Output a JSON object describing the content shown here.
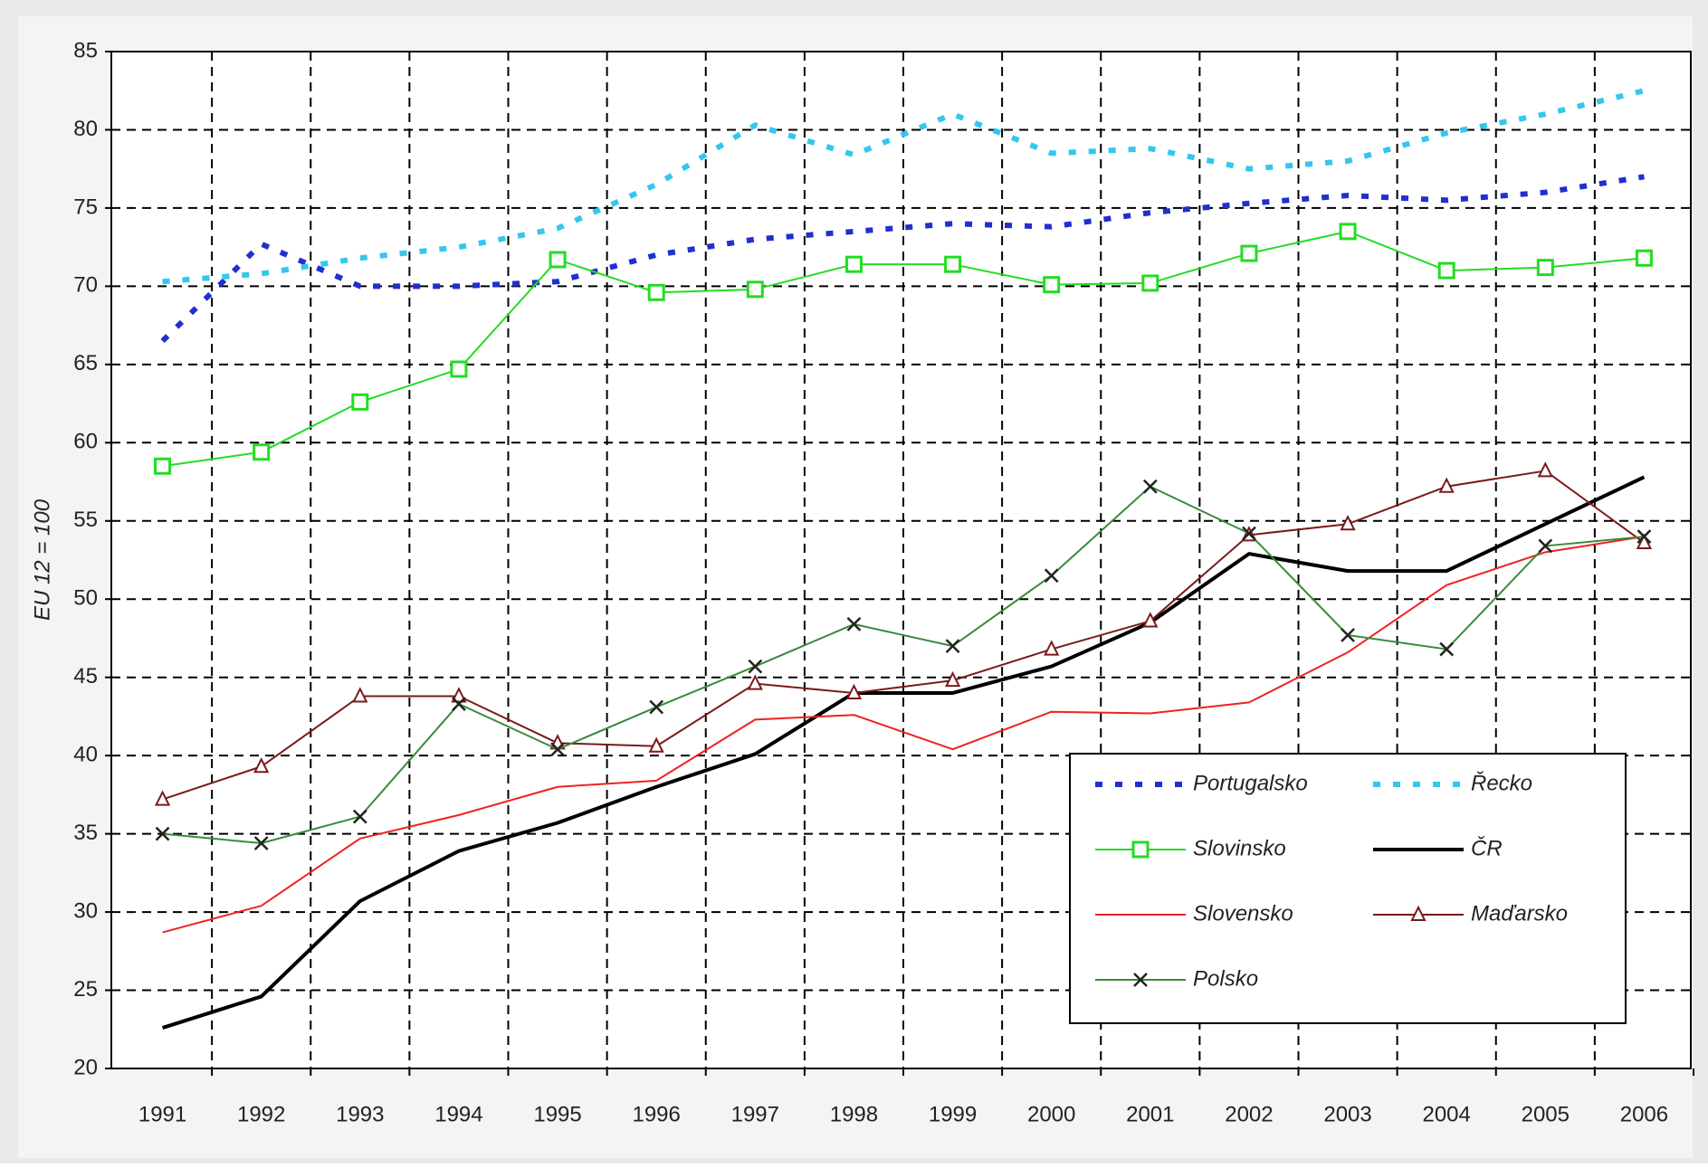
{
  "chart_data": {
    "type": "line",
    "y_label": "EU 12 = 100",
    "categories": [
      "1991",
      "1992",
      "1993",
      "1994",
      "1995",
      "1996",
      "1997",
      "1998",
      "1999",
      "2000",
      "2001",
      "2002",
      "2003",
      "2004",
      "2005",
      "2006"
    ],
    "ylim": [
      20,
      85
    ],
    "yticks": [
      20,
      25,
      30,
      35,
      40,
      45,
      50,
      55,
      60,
      65,
      70,
      75,
      80,
      85
    ],
    "grid": true,
    "legend": "lower-right",
    "series": [
      {
        "name": "Portugalsko",
        "color": "#1f2fd0",
        "style": "dotted",
        "marker": "none",
        "values": [
          66.5,
          72.7,
          70,
          70,
          70.3,
          72,
          73,
          73.5,
          74,
          73.8,
          74.7,
          75.3,
          75.8,
          75.5,
          76,
          77
        ]
      },
      {
        "name": "Řecko",
        "color": "#33c7ee",
        "style": "dotted",
        "marker": "none",
        "values": [
          70.3,
          70.8,
          71.8,
          72.5,
          73.7,
          76.5,
          80.3,
          78.4,
          81,
          78.5,
          78.8,
          77.5,
          78,
          79.8,
          81,
          82.5
        ]
      },
      {
        "name": "Slovinsko",
        "color": "#22dd22",
        "style": "solid",
        "marker": "square",
        "values": [
          58.5,
          59.4,
          62.6,
          64.7,
          71.7,
          69.6,
          69.8,
          71.4,
          71.4,
          70.1,
          70.2,
          72.1,
          73.5,
          71,
          71.2,
          71.8
        ]
      },
      {
        "name": "ČR",
        "color": "#000000",
        "style": "thick",
        "marker": "none",
        "values": [
          22.6,
          24.6,
          30.7,
          33.9,
          35.7,
          38,
          40.1,
          44,
          44,
          45.7,
          48.5,
          52.9,
          51.8,
          51.8,
          54.8,
          57.8
        ]
      },
      {
        "name": "Slovensko",
        "color": "#ee2222",
        "style": "solid",
        "marker": "none",
        "values": [
          28.7,
          30.4,
          34.7,
          36.2,
          38,
          38.4,
          42.3,
          42.6,
          40.4,
          42.8,
          42.7,
          43.4,
          46.6,
          50.9,
          53,
          54
        ]
      },
      {
        "name": "Maďarsko",
        "color": "#7a1a1a",
        "style": "solid",
        "marker": "triangle",
        "values": [
          37.2,
          39.3,
          43.8,
          43.8,
          40.8,
          40.6,
          44.6,
          44,
          44.8,
          46.8,
          48.6,
          54.1,
          54.8,
          57.2,
          58.2,
          53.6
        ]
      },
      {
        "name": "Polsko",
        "color": "#3a8a3a",
        "style": "solid",
        "marker": "x",
        "values": [
          35,
          34.4,
          36.1,
          43.3,
          40.4,
          43.1,
          45.7,
          48.4,
          47,
          51.5,
          57.2,
          54.2,
          47.7,
          46.8,
          53.4,
          54
        ]
      }
    ]
  }
}
